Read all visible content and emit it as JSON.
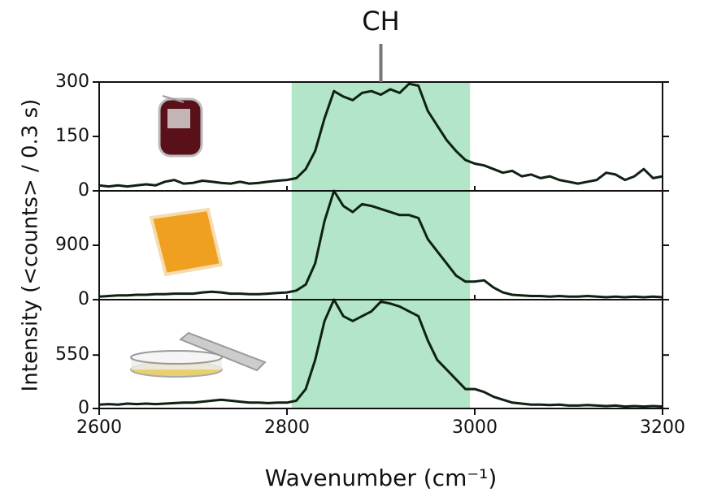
{
  "chart_data": [
    {
      "type": "line",
      "annotation": {
        "label": "CH",
        "x": 2900
      },
      "highlight": [
        2805,
        2995
      ],
      "highlight_color": "#b3e6c8",
      "color": "#0f2212",
      "ylim": [
        0,
        300
      ],
      "yticks": [
        0,
        150,
        300
      ],
      "xlim": [
        2600,
        3200
      ],
      "x": [
        2600,
        2610,
        2620,
        2630,
        2640,
        2650,
        2660,
        2670,
        2680,
        2690,
        2700,
        2710,
        2720,
        2730,
        2740,
        2750,
        2760,
        2770,
        2780,
        2790,
        2800,
        2810,
        2820,
        2830,
        2840,
        2850,
        2860,
        2870,
        2880,
        2890,
        2900,
        2910,
        2920,
        2930,
        2940,
        2950,
        2960,
        2970,
        2980,
        2990,
        3000,
        3010,
        3020,
        3030,
        3040,
        3050,
        3060,
        3070,
        3080,
        3090,
        3100,
        3110,
        3120,
        3130,
        3140,
        3150,
        3160,
        3170,
        3180,
        3190,
        3200
      ],
      "values": [
        15,
        12,
        15,
        12,
        15,
        18,
        15,
        25,
        30,
        20,
        22,
        28,
        25,
        22,
        20,
        25,
        20,
        22,
        25,
        28,
        30,
        35,
        60,
        110,
        200,
        275,
        260,
        250,
        270,
        275,
        265,
        280,
        270,
        295,
        290,
        220,
        180,
        140,
        110,
        85,
        75,
        70,
        60,
        50,
        55,
        40,
        45,
        35,
        40,
        30,
        25,
        20,
        25,
        30,
        50,
        45,
        30,
        40,
        60,
        35,
        40
      ]
    },
    {
      "type": "line",
      "ylabel": "Intensity (<counts> / 0.3 s)",
      "highlight": [
        2805,
        2995
      ],
      "highlight_color": "#b3e6c8",
      "color": "#0f2212",
      "ylim": [
        0,
        1800
      ],
      "yticks": [
        0,
        900
      ],
      "xlim": [
        2600,
        3200
      ],
      "x": [
        2600,
        2610,
        2620,
        2630,
        2640,
        2650,
        2660,
        2670,
        2680,
        2690,
        2700,
        2710,
        2720,
        2730,
        2740,
        2750,
        2760,
        2770,
        2780,
        2790,
        2800,
        2810,
        2820,
        2830,
        2840,
        2850,
        2860,
        2870,
        2880,
        2890,
        2900,
        2910,
        2920,
        2930,
        2940,
        2950,
        2960,
        2970,
        2980,
        2990,
        3000,
        3010,
        3020,
        3030,
        3040,
        3050,
        3060,
        3070,
        3080,
        3090,
        3100,
        3110,
        3120,
        3130,
        3140,
        3150,
        3160,
        3170,
        3180,
        3190,
        3200
      ],
      "values": [
        50,
        60,
        70,
        70,
        80,
        80,
        90,
        90,
        100,
        100,
        100,
        120,
        130,
        120,
        100,
        100,
        90,
        90,
        100,
        110,
        120,
        150,
        250,
        600,
        1300,
        1800,
        1550,
        1450,
        1580,
        1550,
        1500,
        1450,
        1400,
        1400,
        1350,
        1000,
        800,
        600,
        400,
        300,
        300,
        320,
        200,
        120,
        80,
        70,
        60,
        60,
        50,
        60,
        50,
        50,
        60,
        50,
        40,
        50,
        40,
        50,
        40,
        50,
        40
      ]
    },
    {
      "type": "line",
      "xlabel": "Wavenumber (cm⁻¹)",
      "highlight": [
        2805,
        2995
      ],
      "highlight_color": "#b3e6c8",
      "color": "#0f2212",
      "ylim": [
        0,
        1120
      ],
      "yticks": [
        0,
        550
      ],
      "xlim": [
        2600,
        3200
      ],
      "xticks": [
        2600,
        2800,
        3000,
        3200
      ],
      "x": [
        2600,
        2610,
        2620,
        2630,
        2640,
        2650,
        2660,
        2670,
        2680,
        2690,
        2700,
        2710,
        2720,
        2730,
        2740,
        2750,
        2760,
        2770,
        2780,
        2790,
        2800,
        2810,
        2820,
        2830,
        2840,
        2850,
        2860,
        2870,
        2880,
        2890,
        2900,
        2910,
        2920,
        2930,
        2940,
        2950,
        2960,
        2970,
        2980,
        2990,
        3000,
        3010,
        3020,
        3030,
        3040,
        3050,
        3060,
        3070,
        3080,
        3090,
        3100,
        3110,
        3120,
        3130,
        3140,
        3150,
        3160,
        3170,
        3180,
        3190,
        3200
      ],
      "values": [
        40,
        45,
        40,
        50,
        45,
        50,
        45,
        50,
        55,
        60,
        60,
        70,
        80,
        90,
        80,
        70,
        60,
        60,
        55,
        60,
        60,
        80,
        200,
        500,
        900,
        1120,
        950,
        900,
        950,
        1000,
        1100,
        1080,
        1050,
        1000,
        950,
        700,
        500,
        400,
        300,
        200,
        200,
        170,
        120,
        90,
        60,
        50,
        40,
        40,
        35,
        40,
        30,
        30,
        35,
        30,
        25,
        30,
        20,
        25,
        20,
        25,
        20
      ]
    }
  ]
}
